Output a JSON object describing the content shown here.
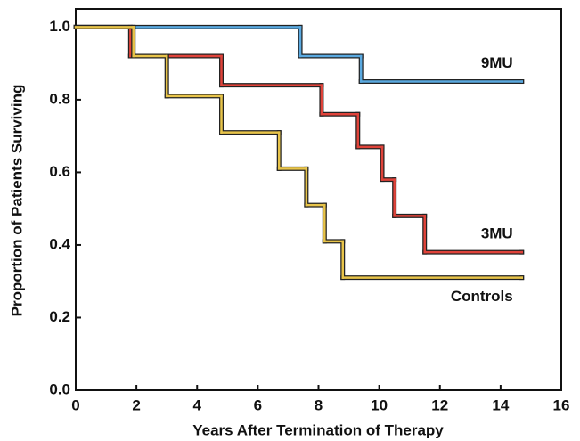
{
  "chart_data": {
    "type": "step",
    "xlabel": "Years After Termination of Therapy",
    "ylabel": "Proportion of Patients Surviving",
    "xlim": [
      0,
      16
    ],
    "xticks": [
      0,
      2,
      4,
      6,
      8,
      10,
      12,
      14,
      16
    ],
    "ylim": [
      0,
      1.05
    ],
    "yticks": [
      {
        "value": 0,
        "label": "0.0"
      },
      0.2,
      0.4,
      0.6,
      0.8,
      {
        "value": 1,
        "label": "1.0"
      }
    ],
    "series": [
      {
        "name": "9MU",
        "color": "#5aa9e0",
        "x": [
          0,
          7.4,
          9.4,
          14.7
        ],
        "values": [
          1.0,
          0.92,
          0.85,
          0.85
        ]
      },
      {
        "name": "3MU",
        "color": "#e0433a",
        "x": [
          0,
          1.8,
          4.8,
          8.1,
          9.3,
          10.1,
          10.5,
          11.5,
          14.7
        ],
        "values": [
          1.0,
          0.92,
          0.84,
          0.76,
          0.67,
          0.58,
          0.48,
          0.38,
          0.38
        ]
      },
      {
        "name": "Controls",
        "color": "#e8c44a",
        "x": [
          0,
          1.9,
          3.0,
          4.8,
          6.7,
          7.6,
          8.2,
          8.8,
          14.7
        ],
        "values": [
          1.0,
          0.92,
          0.81,
          0.71,
          0.61,
          0.51,
          0.41,
          0.31,
          0.31
        ]
      }
    ]
  }
}
